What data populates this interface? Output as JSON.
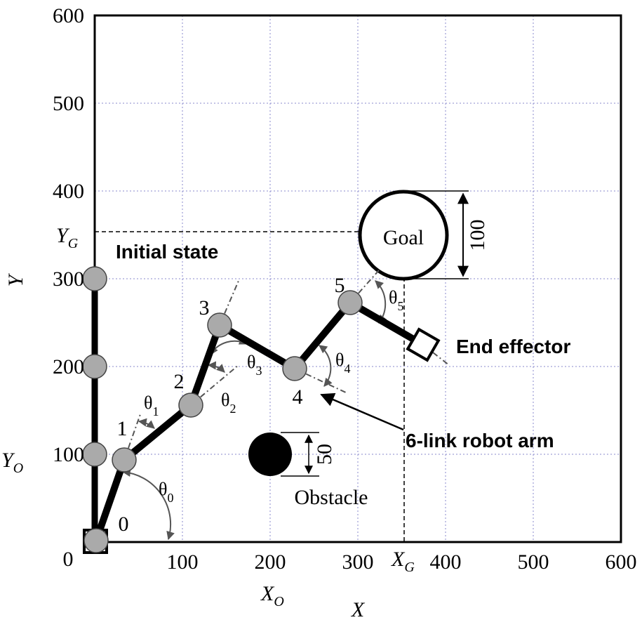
{
  "axes": {
    "xticks": [
      0,
      100,
      200,
      300,
      400,
      500,
      600
    ],
    "yticks": [
      100,
      200,
      300,
      400,
      500,
      600
    ],
    "x_label": "X",
    "y_label": "Y"
  },
  "markers": {
    "x_o": {
      "main": "X",
      "sub": "O"
    },
    "y_o": {
      "main": "Y",
      "sub": "O"
    },
    "x_g": {
      "main": "X",
      "sub": "G"
    },
    "y_g": {
      "main": "Y",
      "sub": "G"
    }
  },
  "labels": {
    "initial_state": "Initial state",
    "goal": "Goal",
    "goal_size": "100",
    "obstacle": "Obstacle",
    "obstacle_size": "50",
    "end_effector": "End effector",
    "robot_arm": "6-link robot arm"
  },
  "joints": [
    "0",
    "1",
    "2",
    "3",
    "4",
    "5"
  ],
  "angles": [
    {
      "main": "θ",
      "sub": "0"
    },
    {
      "main": "θ",
      "sub": "1"
    },
    {
      "main": "θ",
      "sub": "2"
    },
    {
      "main": "θ",
      "sub": "3"
    },
    {
      "main": "θ",
      "sub": "4"
    },
    {
      "main": "θ",
      "sub": "5"
    }
  ]
}
